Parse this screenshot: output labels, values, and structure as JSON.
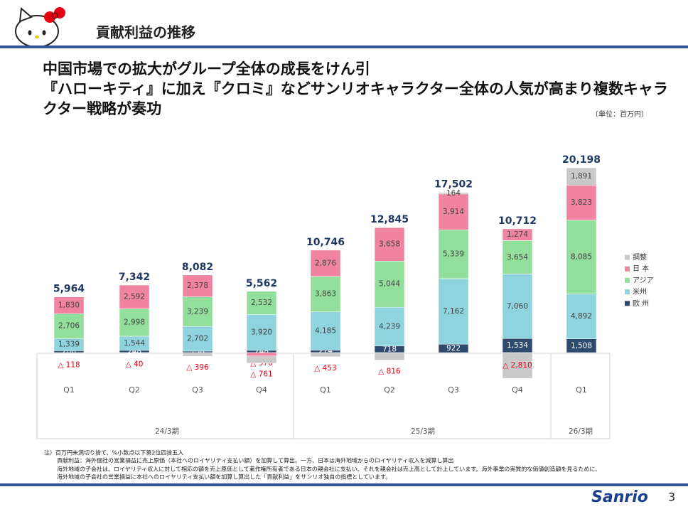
{
  "header": {
    "title": "貢献利益の推移"
  },
  "headline": [
    "中国市場での拡大がグループ全体の成長をけん引",
    "『ハローキティ』に加え『クロミ』などサンリオキャラクター全体の人気が高まり複数キャラ",
    "クター戦略が奏功"
  ],
  "unit": "〔単位：百万円〕",
  "chart_data": {
    "type": "bar",
    "stacked": true,
    "categories": [
      "Q1",
      "Q2",
      "Q3",
      "Q4",
      "Q1",
      "Q2",
      "Q3",
      "Q4",
      "Q1"
    ],
    "groups": [
      "24/3期",
      "25/3期",
      "26/3期"
    ],
    "series": [
      {
        "name": "欧 州",
        "color": "#2e4a6e",
        "values": [
          206,
          248,
          158,
          248,
          274,
          718,
          922,
          1534,
          1508
        ],
        "value_labels": [
          "206",
          "248",
          "158",
          "248",
          "274",
          "718",
          "922",
          "1,534",
          "1,508"
        ]
      },
      {
        "name": "米州",
        "color": "#8ed3de",
        "values": [
          1339,
          1544,
          2702,
          3920,
          4185,
          4239,
          7162,
          7060,
          4892
        ],
        "value_labels": [
          "1,339",
          "1,544",
          "2,702",
          "3,920",
          "4,185",
          "4,239",
          "7,162",
          "7,060",
          "4,892"
        ]
      },
      {
        "name": "アジア",
        "color": "#92df9b",
        "values": [
          2706,
          2998,
          3239,
          2532,
          3863,
          5044,
          5339,
          3654,
          8085
        ],
        "value_labels": [
          "2,706",
          "2,998",
          "3,239",
          "2,532",
          "3,863",
          "5,044",
          "5,339",
          "3,654",
          "8,085"
        ]
      },
      {
        "name": "日 本",
        "color": "#f0839f",
        "values": [
          1830,
          2592,
          2378,
          -376,
          2876,
          3658,
          3914,
          1274,
          3823
        ],
        "value_labels": [
          "1,830",
          "2,592",
          "2,378",
          "△ 376",
          "2,876",
          "3,658",
          "3,914",
          "1,274",
          "3,823"
        ]
      },
      {
        "name": "調整",
        "color": "#c9c9c9",
        "values": [
          -118,
          -40,
          -396,
          -761,
          -453,
          -816,
          164,
          -2810,
          1891
        ],
        "value_labels": [
          "△ 118",
          "△ 40",
          "△ 396",
          "△ 761",
          "△ 453",
          "△ 816",
          "164",
          "△ 2,810",
          "1,891"
        ]
      }
    ],
    "totals": {
      "values": [
        5964,
        7342,
        8082,
        5562,
        10746,
        12845,
        17502,
        10712,
        20198
      ],
      "value_labels": [
        "5,964",
        "7,342",
        "8,082",
        "5,562",
        "10,746",
        "12,845",
        "17,502",
        "10,712",
        "20,198"
      ]
    },
    "legend": "right"
  },
  "footnotes": [
    "注）百万円未満切り捨て、%小数点以下第2位四捨五入",
    "貢献利益：海外個社の営業損益に売上原価（本社へのロイヤリティ支払い額）を加算して算出。一方、日本は海外地域からのロイヤリティ収入を減算し算出",
    "海外地域の子会社は、ロイヤリティ収入に対して相応の額を売上原価として著作権所有者である日本の親会社に支払い、それを親会社は売上高として計上しています。海外事業の実質的な価値創造額を見るために、",
    "海外地域の子会社の営業損益に本社へのロイヤリティ支払い額を加算し算出した「貢献利益」をサンリオ独自の指標としています。"
  ],
  "logo": "Sanrio",
  "page_number": "3"
}
